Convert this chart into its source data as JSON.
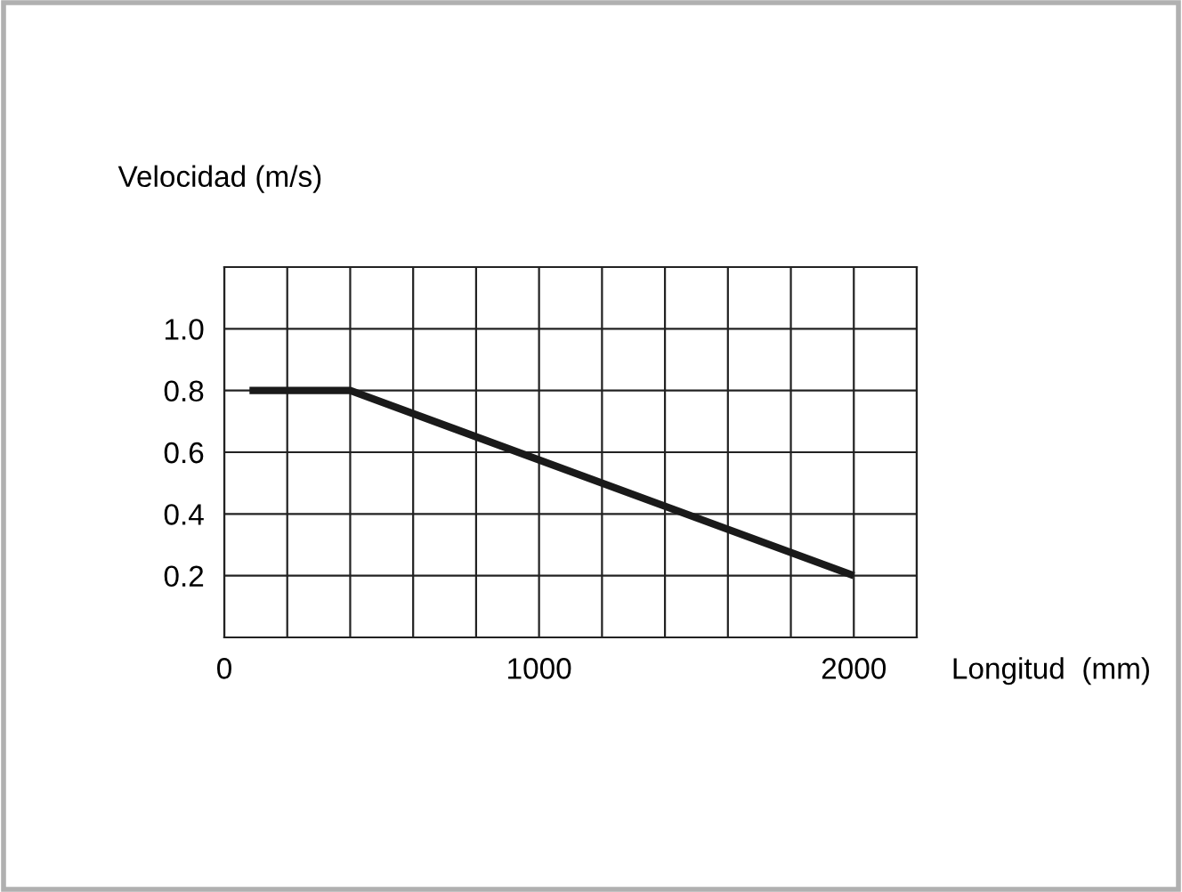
{
  "chart_data": {
    "type": "line",
    "xlabel": "Longitud  (mm)",
    "ylabel": "Velocidad (m/s)",
    "x": [
      80,
      400,
      2000
    ],
    "series": [
      {
        "color": "#1a1a1a",
        "values": [
          0.8,
          0.8,
          0.2
        ]
      }
    ],
    "xlim": [
      0,
      2200
    ],
    "xticks": [
      0,
      {
        "value": 200,
        "label": null
      },
      {
        "value": 400,
        "label": null
      },
      {
        "value": 600,
        "label": null
      },
      {
        "value": 800,
        "label": null
      },
      1000,
      {
        "value": 1200,
        "label": null
      },
      {
        "value": 1400,
        "label": null
      },
      {
        "value": 1600,
        "label": null
      },
      {
        "value": 1800,
        "label": null
      },
      2000,
      {
        "value": 2200,
        "label": null
      }
    ],
    "ylim": [
      0,
      1.2
    ],
    "yticks": [
      {
        "value": 0,
        "label": null
      },
      {
        "value": 0.2,
        "label": "0.2"
      },
      {
        "value": 0.4,
        "label": "0.4"
      },
      {
        "value": 0.6,
        "label": "0.6"
      },
      {
        "value": 0.8,
        "label": "0.8"
      },
      {
        "value": 1.0,
        "label": "1.0"
      },
      {
        "value": 1.2,
        "label": null
      }
    ],
    "grid": true,
    "line_style": "solid",
    "marker": "none",
    "legend": false
  }
}
